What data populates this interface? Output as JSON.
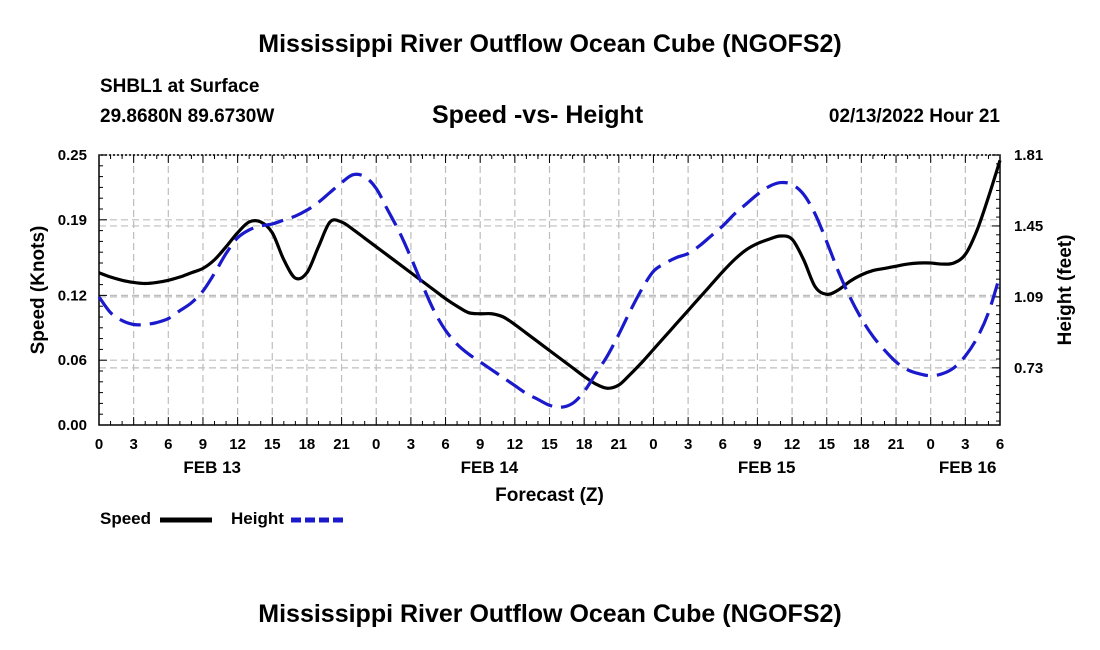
{
  "page": {
    "title": "Mississippi River Outflow Ocean Cube (NGOFS2)",
    "bottom_title": "Mississippi River Outflow Ocean Cube (NGOFS2)",
    "station": "SHBL1 at Surface",
    "coords": "29.8680N  89.6730W",
    "subtitle": "Speed -vs- Height",
    "datetime": "02/13/2022 Hour 21"
  },
  "legend": {
    "speed_label": "Speed",
    "height_label": "Height"
  },
  "chart_data": {
    "type": "line",
    "title": "Speed -vs- Height",
    "xlabel": "Forecast (Z)",
    "ylabel_left": "Speed (Knots)",
    "ylabel_right": "Height (feet)",
    "xlim": [
      0,
      78
    ],
    "ylim_left": [
      0,
      0.25
    ],
    "ylim_right": [
      0.44,
      1.81
    ],
    "x_ticks": [
      0,
      3,
      6,
      9,
      12,
      15,
      18,
      21,
      24,
      27,
      30,
      33,
      36,
      39,
      42,
      45,
      48,
      51,
      54,
      57,
      60,
      63,
      66,
      69,
      72,
      75,
      78
    ],
    "x_tick_labels": [
      "0",
      "3",
      "6",
      "9",
      "12",
      "15",
      "18",
      "21",
      "0",
      "3",
      "6",
      "9",
      "12",
      "15",
      "18",
      "21",
      "0",
      "3",
      "6",
      "9",
      "12",
      "15",
      "18",
      "21",
      "0",
      "3",
      "6"
    ],
    "date_labels": [
      {
        "x": 9.8,
        "label": "FEB 13"
      },
      {
        "x": 33.8,
        "label": "FEB 14"
      },
      {
        "x": 57.8,
        "label": "FEB 15"
      },
      {
        "x": 75.2,
        "label": "FEB 16"
      }
    ],
    "left_ticks": [
      0,
      0.06,
      0.12,
      0.19,
      0.25
    ],
    "left_tick_labels": [
      "0.00",
      "0.06",
      "0.12",
      "0.19",
      "0.25"
    ],
    "right_ticks": [
      0.73,
      1.09,
      1.45,
      1.81
    ],
    "right_tick_labels": [
      "0.73",
      "1.09",
      "1.45",
      "1.81"
    ],
    "grid": true,
    "series": [
      {
        "name": "Speed",
        "axis": "left",
        "color": "#000000",
        "dash": "solid",
        "x": [
          0,
          1,
          2,
          3,
          4,
          5,
          6,
          7,
          8,
          9,
          10,
          11,
          12,
          13,
          14,
          15,
          16,
          17,
          18,
          19,
          20,
          21,
          22,
          23,
          24,
          25,
          26,
          27,
          28,
          29,
          30,
          31,
          32,
          33,
          34,
          35,
          36,
          37,
          38,
          39,
          40,
          41,
          42,
          43,
          44,
          45,
          46,
          47,
          48,
          49,
          50,
          51,
          52,
          53,
          54,
          55,
          56,
          57,
          58,
          59,
          60,
          61,
          62,
          63,
          64,
          65,
          66,
          67,
          68,
          69,
          70,
          71,
          72,
          73,
          74,
          75,
          76,
          77,
          78
        ],
        "values": [
          0.141,
          0.137,
          0.134,
          0.132,
          0.131,
          0.132,
          0.134,
          0.137,
          0.141,
          0.145,
          0.153,
          0.165,
          0.178,
          0.188,
          0.188,
          0.178,
          0.153,
          0.136,
          0.141,
          0.165,
          0.188,
          0.188,
          0.181,
          0.173,
          0.165,
          0.157,
          0.149,
          0.141,
          0.133,
          0.125,
          0.117,
          0.11,
          0.104,
          0.103,
          0.103,
          0.1,
          0.093,
          0.085,
          0.077,
          0.069,
          0.061,
          0.053,
          0.045,
          0.038,
          0.034,
          0.037,
          0.047,
          0.058,
          0.07,
          0.082,
          0.094,
          0.106,
          0.118,
          0.13,
          0.142,
          0.153,
          0.162,
          0.168,
          0.172,
          0.175,
          0.172,
          0.153,
          0.128,
          0.121,
          0.125,
          0.133,
          0.139,
          0.143,
          0.145,
          0.147,
          0.149,
          0.15,
          0.15,
          0.149,
          0.15,
          0.158,
          0.18,
          0.211,
          0.245
        ]
      },
      {
        "name": "Height",
        "axis": "right",
        "color": "#1a1acc",
        "dash": "dashed",
        "x": [
          0,
          1,
          2,
          3,
          4,
          5,
          6,
          7,
          8,
          9,
          10,
          11,
          12,
          13,
          14,
          15,
          16,
          17,
          18,
          19,
          20,
          21,
          22,
          23,
          24,
          25,
          26,
          27,
          28,
          29,
          30,
          31,
          32,
          33,
          34,
          35,
          36,
          37,
          38,
          39,
          40,
          41,
          42,
          43,
          44,
          45,
          46,
          47,
          48,
          49,
          50,
          51,
          52,
          53,
          54,
          55,
          56,
          57,
          58,
          59,
          60,
          61,
          62,
          63,
          64,
          65,
          66,
          67,
          68,
          69,
          70,
          71,
          72,
          73,
          74,
          75,
          76,
          77,
          78
        ],
        "values": [
          1.09,
          1.01,
          0.97,
          0.95,
          0.95,
          0.96,
          0.98,
          1.02,
          1.06,
          1.12,
          1.21,
          1.31,
          1.39,
          1.43,
          1.45,
          1.46,
          1.48,
          1.5,
          1.53,
          1.57,
          1.62,
          1.67,
          1.71,
          1.7,
          1.64,
          1.53,
          1.42,
          1.29,
          1.15,
          1.02,
          0.92,
          0.85,
          0.8,
          0.76,
          0.72,
          0.68,
          0.64,
          0.6,
          0.57,
          0.54,
          0.53,
          0.55,
          0.61,
          0.7,
          0.79,
          0.9,
          1.02,
          1.13,
          1.22,
          1.26,
          1.29,
          1.31,
          1.35,
          1.4,
          1.45,
          1.51,
          1.56,
          1.61,
          1.65,
          1.67,
          1.66,
          1.61,
          1.51,
          1.37,
          1.22,
          1.09,
          0.98,
          0.89,
          0.82,
          0.76,
          0.72,
          0.7,
          0.69,
          0.7,
          0.73,
          0.79,
          0.88,
          1.01,
          1.2
        ]
      }
    ]
  }
}
